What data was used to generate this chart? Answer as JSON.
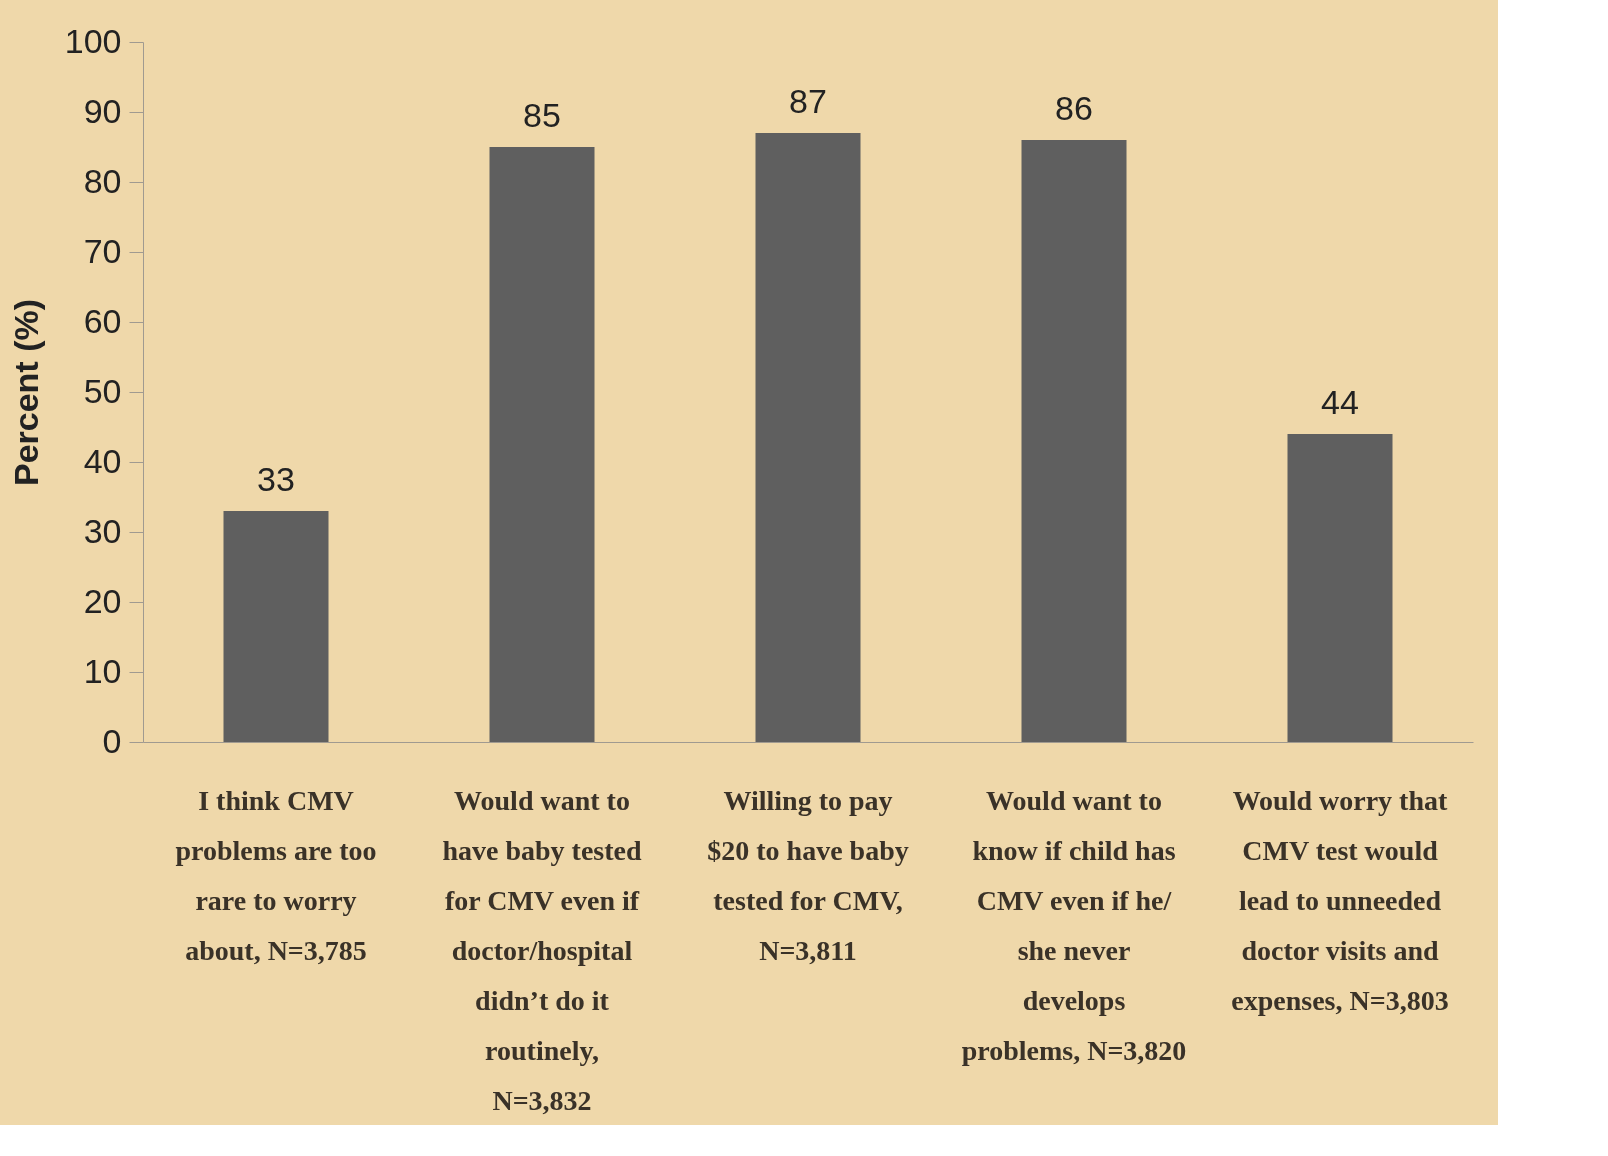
{
  "chart_data": {
    "type": "bar",
    "ylabel": "Percent (%)",
    "categories": [
      "I think CMV problems are too rare to worry about, N=3,785",
      "Would want to have baby tested for CMV even if doctor/hospital didn’t do it routinely, N=3,832",
      "Willing to pay $20 to have baby tested for CMV, N=3,811",
      "Would want to know if child has CMV even if he/ she never develops problems, N=3,820",
      "Would worry that CMV test would lead to unneeded doctor visits and expenses, N=3,803"
    ],
    "values": [
      33,
      85,
      87,
      86,
      44
    ],
    "color": "#5f5f5f",
    "ylim": [
      0,
      100
    ],
    "yticks": [
      0,
      10,
      20,
      30,
      40,
      50,
      60,
      70,
      80,
      90,
      100
    ],
    "grid": false,
    "data_labels": true
  }
}
